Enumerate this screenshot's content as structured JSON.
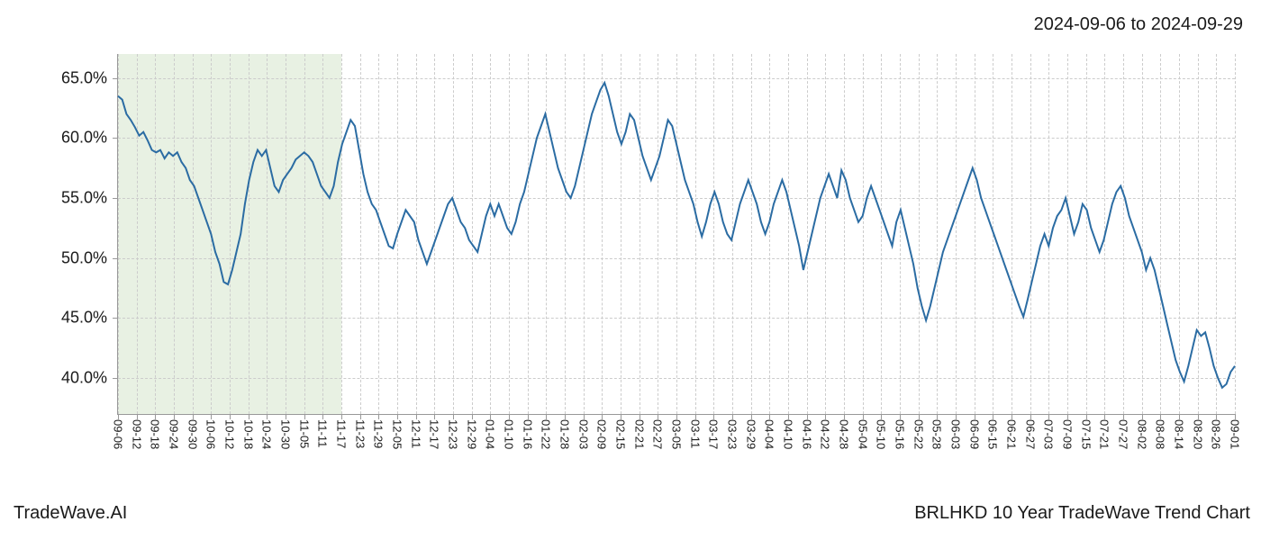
{
  "date_range": "2024-09-06 to 2024-09-29",
  "footer_left": "TradeWave.AI",
  "footer_right": "BRLHKD 10 Year TradeWave Trend Chart",
  "chart": {
    "type": "line",
    "line_color": "#2b6ca3",
    "line_width": 2,
    "background_color": "#ffffff",
    "grid_color": "#cccccc",
    "axis_color": "#999999",
    "text_color": "#1a1a1a",
    "highlight_color": "#d8e8d0",
    "highlight_opacity": 0.6,
    "tick_fontsize": 18,
    "xtick_fontsize": 13,
    "ylim": [
      37,
      67
    ],
    "yticks": [
      40,
      45,
      50,
      55,
      60,
      65
    ],
    "ytick_labels": [
      "40.0%",
      "45.0%",
      "50.0%",
      "55.0%",
      "60.0%",
      "65.0%"
    ],
    "highlight_band": {
      "x_start_index": 0,
      "x_end_index": 12
    },
    "x_labels": [
      "09-06",
      "09-12",
      "09-18",
      "09-24",
      "09-30",
      "10-06",
      "10-12",
      "10-18",
      "10-24",
      "10-30",
      "11-05",
      "11-11",
      "11-17",
      "11-23",
      "11-29",
      "12-05",
      "12-11",
      "12-17",
      "12-23",
      "12-29",
      "01-04",
      "01-10",
      "01-16",
      "01-22",
      "01-28",
      "02-03",
      "02-09",
      "02-15",
      "02-21",
      "02-27",
      "03-05",
      "03-11",
      "03-17",
      "03-23",
      "03-29",
      "04-04",
      "04-10",
      "04-16",
      "04-22",
      "04-28",
      "05-04",
      "05-10",
      "05-16",
      "05-22",
      "05-28",
      "06-03",
      "06-09",
      "06-15",
      "06-21",
      "06-27",
      "07-03",
      "07-09",
      "07-15",
      "07-21",
      "07-27",
      "08-02",
      "08-08",
      "08-14",
      "08-20",
      "08-26",
      "09-01"
    ],
    "data": [
      63.5,
      63.2,
      62.0,
      61.5,
      60.9,
      60.2,
      60.5,
      59.8,
      59.0,
      58.8,
      59.0,
      58.3,
      58.8,
      58.5,
      58.8,
      58.0,
      57.5,
      56.5,
      56.0,
      55.0,
      54.0,
      53.0,
      52.0,
      50.5,
      49.5,
      48.0,
      47.8,
      49.0,
      50.5,
      52.0,
      54.5,
      56.5,
      58.0,
      59.0,
      58.5,
      59.0,
      57.5,
      56.0,
      55.5,
      56.5,
      57.0,
      57.5,
      58.2,
      58.5,
      58.8,
      58.5,
      58.0,
      57.0,
      56.0,
      55.5,
      55.0,
      56.0,
      58.0,
      59.5,
      60.5,
      61.5,
      61.0,
      59.0,
      57.0,
      55.5,
      54.5,
      54.0,
      53.0,
      52.0,
      51.0,
      50.8,
      52.0,
      53.0,
      54.0,
      53.5,
      53.0,
      51.5,
      50.5,
      49.5,
      50.5,
      51.5,
      52.5,
      53.5,
      54.5,
      55.0,
      54.0,
      53.0,
      52.5,
      51.5,
      51.0,
      50.5,
      52.0,
      53.5,
      54.5,
      53.5,
      54.5,
      53.5,
      52.5,
      52.0,
      53.0,
      54.5,
      55.5,
      57.0,
      58.5,
      60.0,
      61.0,
      62.0,
      60.5,
      59.0,
      57.5,
      56.5,
      55.5,
      55.0,
      56.0,
      57.5,
      59.0,
      60.5,
      62.0,
      63.0,
      64.0,
      64.6,
      63.5,
      62.0,
      60.5,
      59.5,
      60.5,
      62.0,
      61.5,
      60.0,
      58.5,
      57.5,
      56.5,
      57.5,
      58.5,
      60.0,
      61.5,
      61.0,
      59.5,
      58.0,
      56.5,
      55.5,
      54.5,
      53.0,
      51.8,
      53.0,
      54.5,
      55.5,
      54.5,
      53.0,
      52.0,
      51.5,
      53.0,
      54.5,
      55.5,
      56.5,
      55.5,
      54.5,
      53.0,
      52.0,
      53.0,
      54.5,
      55.5,
      56.5,
      55.5,
      54.0,
      52.5,
      51.0,
      49.0,
      50.5,
      52.0,
      53.5,
      55.0,
      56.0,
      57.0,
      56.0,
      55.0,
      57.3,
      56.5,
      55.0,
      54.0,
      53.0,
      53.5,
      55.0,
      56.0,
      55.0,
      54.0,
      53.0,
      52.0,
      51.0,
      53.0,
      54.0,
      52.5,
      51.0,
      49.5,
      47.5,
      46.0,
      44.8,
      46.0,
      47.5,
      49.0,
      50.5,
      51.5,
      52.5,
      53.5,
      54.5,
      55.5,
      56.5,
      57.5,
      56.5,
      55.0,
      54.0,
      53.0,
      52.0,
      51.0,
      50.0,
      49.0,
      48.0,
      47.0,
      46.0,
      45.1,
      46.5,
      48.0,
      49.5,
      51.0,
      52.0,
      51.0,
      52.5,
      53.5,
      54.0,
      55.0,
      53.5,
      52.0,
      53.0,
      54.5,
      54.0,
      52.5,
      51.5,
      50.5,
      51.5,
      53.0,
      54.5,
      55.5,
      56.0,
      55.0,
      53.5,
      52.5,
      51.5,
      50.5,
      49.0,
      50.0,
      49.0,
      47.5,
      46.0,
      44.5,
      43.0,
      41.5,
      40.5,
      39.7,
      41.0,
      42.5,
      44.0,
      43.5,
      43.8,
      42.5,
      41.0,
      40.0,
      39.2,
      39.5,
      40.5,
      41.0
    ]
  }
}
